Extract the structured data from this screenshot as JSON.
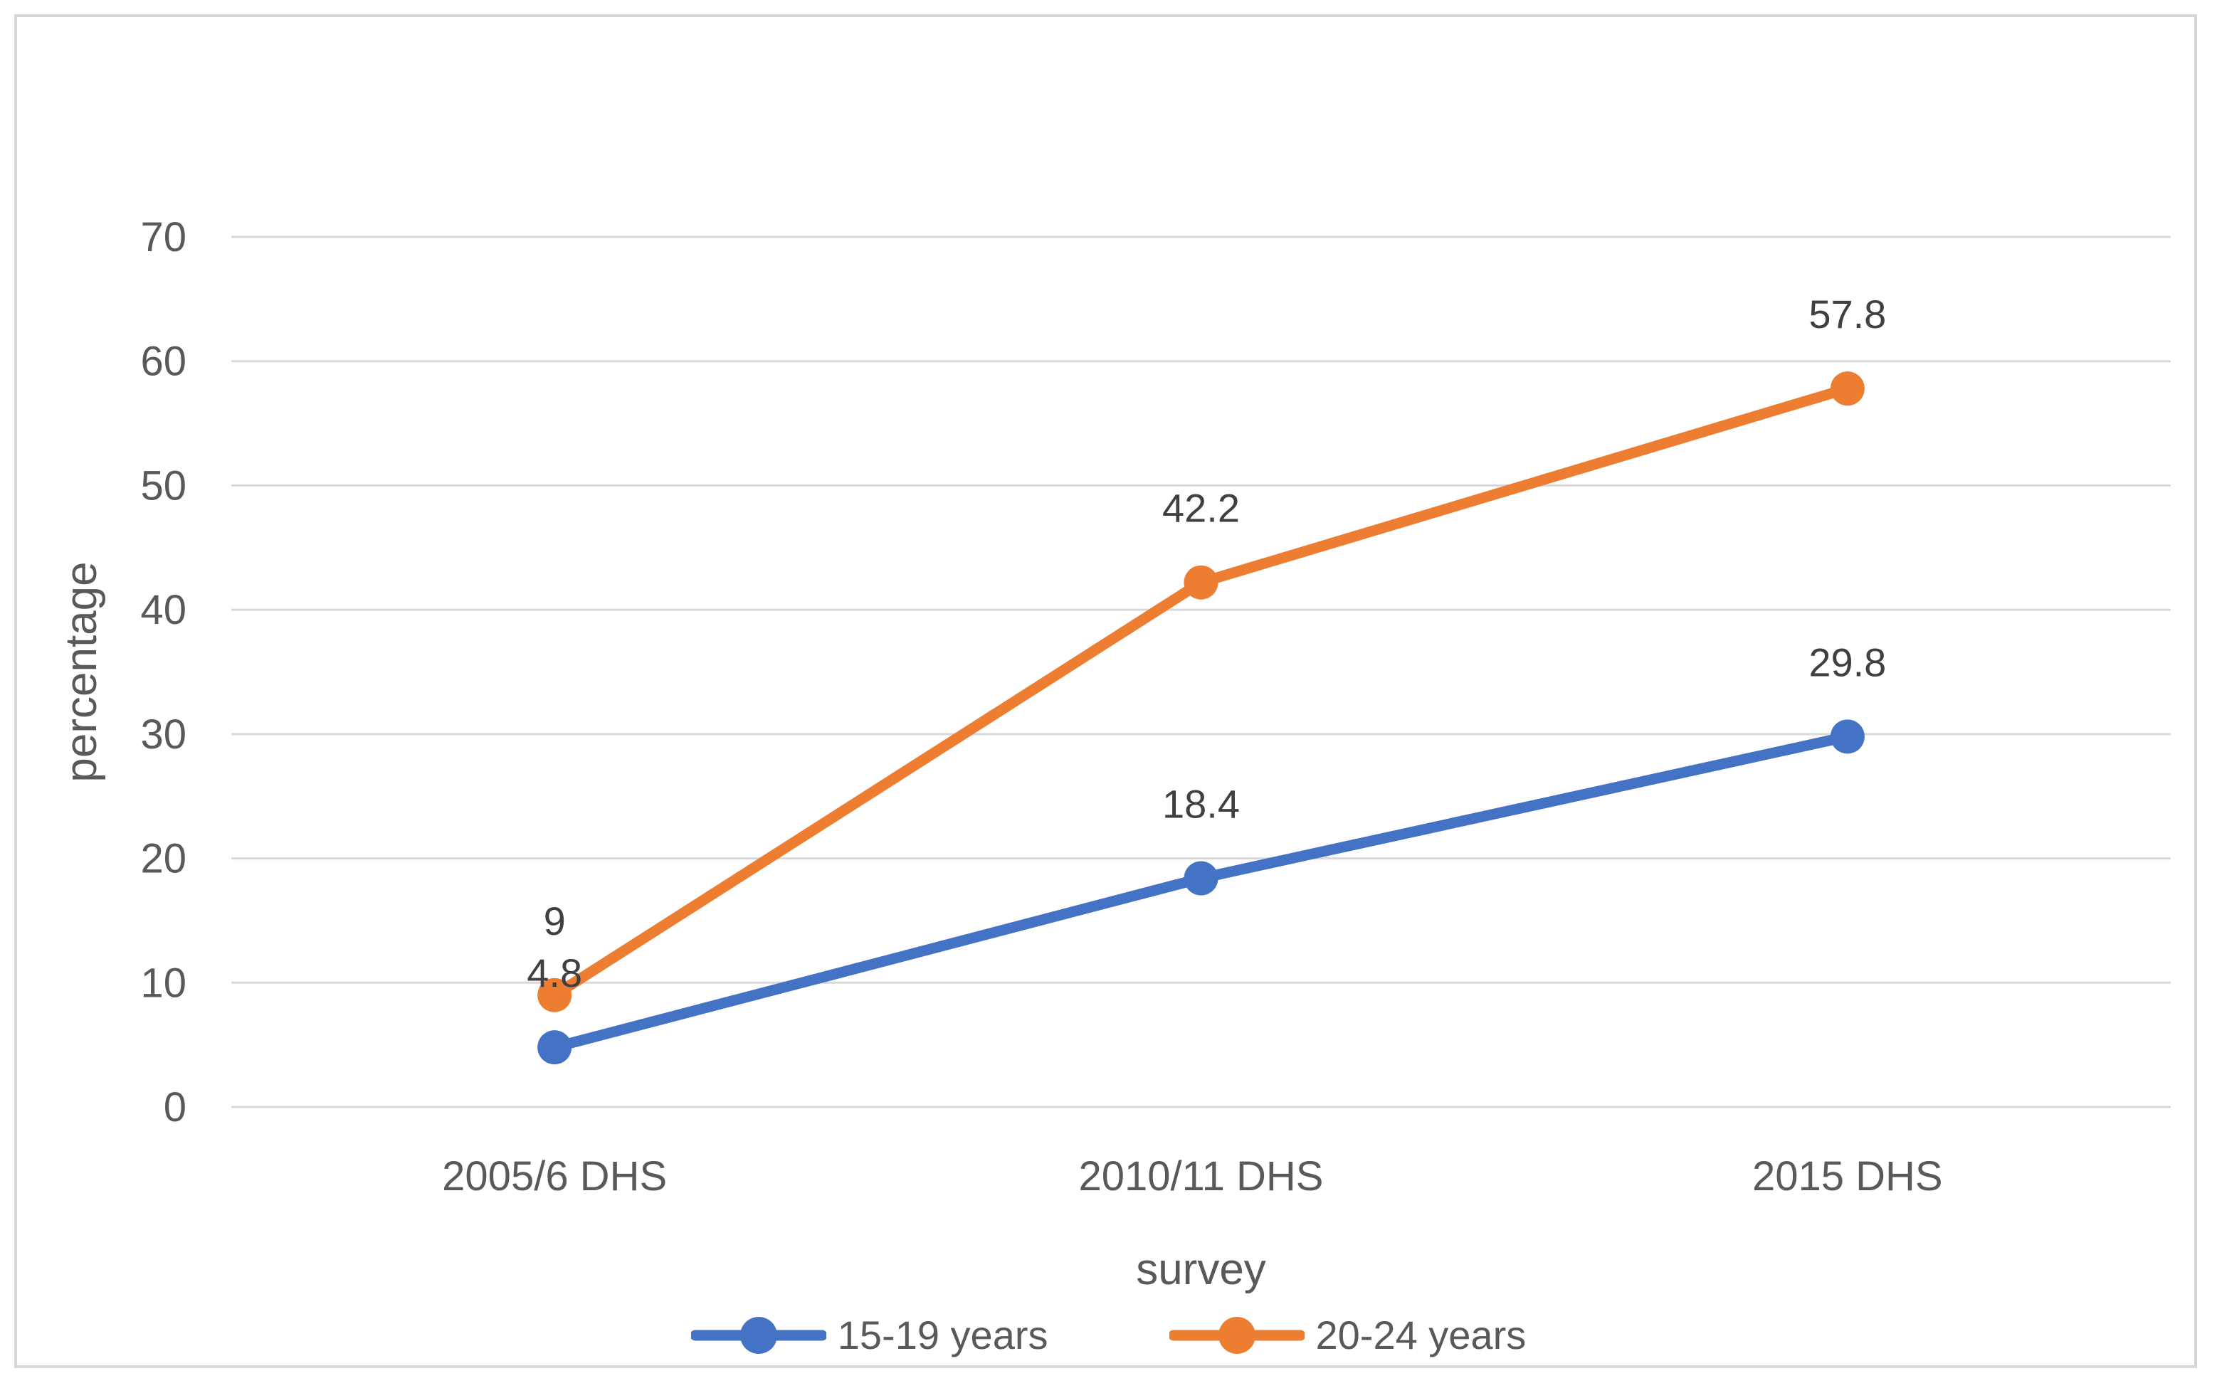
{
  "chart_data": {
    "type": "line",
    "title": "",
    "xlabel": "survey",
    "ylabel": "percentage",
    "ylim": [
      0,
      70
    ],
    "yticks": [
      0,
      10,
      20,
      30,
      40,
      50,
      60,
      70
    ],
    "grid": "horizontal",
    "legend_position": "bottom",
    "categories": [
      "2005/6 DHS",
      "2010/11 DHS",
      "2015 DHS"
    ],
    "series": [
      {
        "name": "15-19 years",
        "color": "#4472C4",
        "values": [
          4.8,
          18.4,
          29.8
        ],
        "labels": [
          "4.8",
          "18.4",
          "29.8"
        ]
      },
      {
        "name": "20-24 years",
        "color": "#ED7D31",
        "values": [
          9,
          42.2,
          57.8
        ],
        "labels": [
          "9",
          "42.2",
          "57.8"
        ]
      }
    ]
  },
  "colors": {
    "grid": "#D9D9D9",
    "frame": "#D7D7D7",
    "tick_text": "#595959",
    "data_label_text": "#404040",
    "axis_title_text": "#595959",
    "series_blue": "#4472C4",
    "series_orange": "#ED7D31"
  }
}
